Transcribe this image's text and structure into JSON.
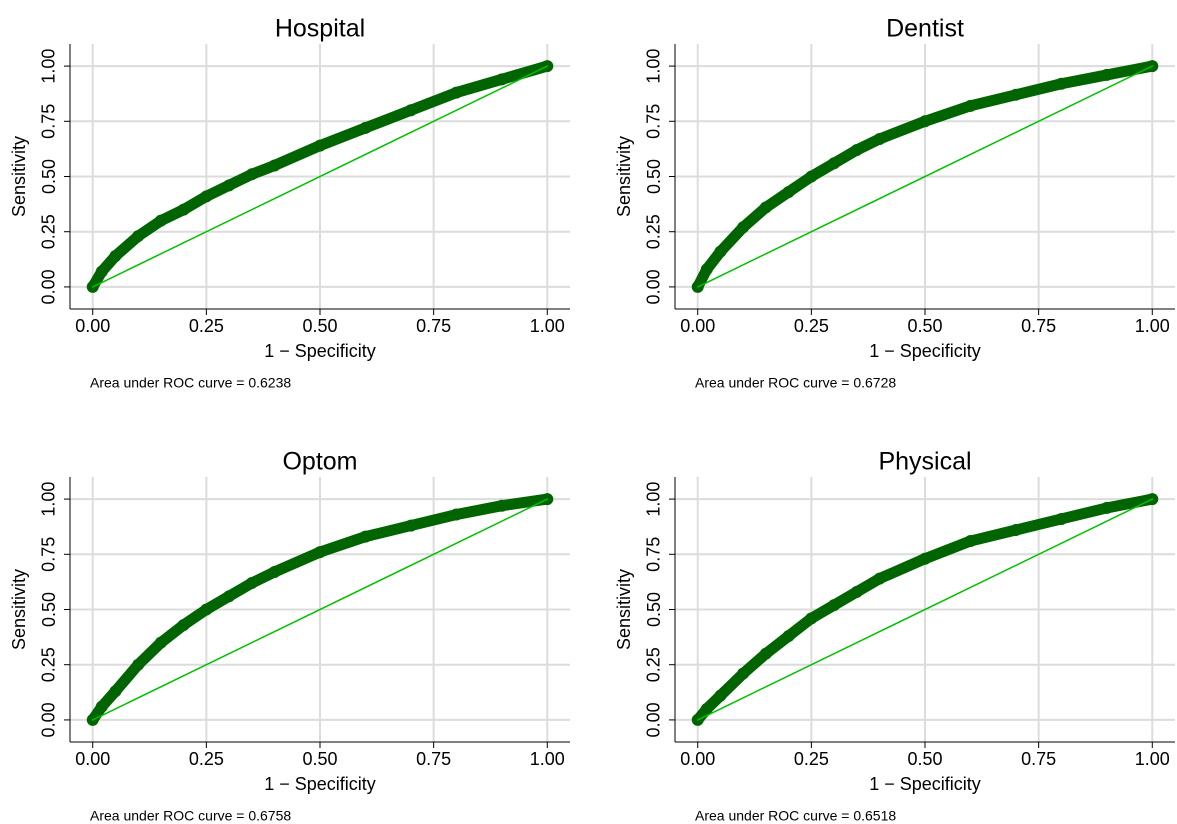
{
  "chart_data": [
    {
      "type": "line",
      "title": "Hospital",
      "xlabel": "1 − Specificity",
      "ylabel": "Sensitivity",
      "note": "Area under ROC curve = 0.6238",
      "xlim": [
        -0.05,
        1.05
      ],
      "ylim": [
        -0.1,
        1.1
      ],
      "xticks": [
        {
          "value": 0,
          "label": "0.00"
        },
        {
          "value": 0.25,
          "label": "0.25"
        },
        {
          "value": 0.5,
          "label": "0.50"
        },
        {
          "value": 0.75,
          "label": "0.75"
        },
        {
          "value": 1,
          "label": "1.00"
        }
      ],
      "yticks": [
        {
          "value": 0,
          "label": "0.00"
        },
        {
          "value": 0.25,
          "label": "0.25"
        },
        {
          "value": 0.5,
          "label": "0.50"
        },
        {
          "value": 0.75,
          "label": "0.75"
        },
        {
          "value": 1,
          "label": "1.00"
        }
      ],
      "grid": true,
      "series": [
        {
          "color": "#006400",
          "marker": true,
          "x": [
            0,
            0.02,
            0.05,
            0.1,
            0.15,
            0.2,
            0.25,
            0.3,
            0.35,
            0.4,
            0.5,
            0.6,
            0.7,
            0.8,
            0.9,
            1
          ],
          "values": [
            0,
            0.07,
            0.14,
            0.23,
            0.3,
            0.35,
            0.41,
            0.46,
            0.51,
            0.55,
            0.64,
            0.72,
            0.8,
            0.88,
            0.94,
            1
          ]
        },
        {
          "color": "#00c000",
          "marker": false,
          "x": [
            0,
            1
          ],
          "values": [
            0,
            1
          ]
        }
      ]
    },
    {
      "type": "line",
      "title": "Dentist",
      "xlabel": "1 − Specificity",
      "ylabel": "Sensitivity",
      "note": "Area under ROC curve = 0.6728",
      "xlim": [
        -0.05,
        1.05
      ],
      "ylim": [
        -0.1,
        1.1
      ],
      "xticks": [
        {
          "value": 0,
          "label": "0.00"
        },
        {
          "value": 0.25,
          "label": "0.25"
        },
        {
          "value": 0.5,
          "label": "0.50"
        },
        {
          "value": 0.75,
          "label": "0.75"
        },
        {
          "value": 1,
          "label": "1.00"
        }
      ],
      "yticks": [
        {
          "value": 0,
          "label": "0.00"
        },
        {
          "value": 0.25,
          "label": "0.25"
        },
        {
          "value": 0.5,
          "label": "0.50"
        },
        {
          "value": 0.75,
          "label": "0.75"
        },
        {
          "value": 1,
          "label": "1.00"
        }
      ],
      "grid": true,
      "series": [
        {
          "color": "#006400",
          "marker": true,
          "x": [
            0,
            0.02,
            0.05,
            0.1,
            0.15,
            0.2,
            0.25,
            0.3,
            0.35,
            0.4,
            0.5,
            0.6,
            0.7,
            0.8,
            0.9,
            1
          ],
          "values": [
            0,
            0.08,
            0.16,
            0.27,
            0.36,
            0.43,
            0.5,
            0.56,
            0.62,
            0.67,
            0.75,
            0.82,
            0.87,
            0.92,
            0.96,
            1
          ]
        },
        {
          "color": "#00c000",
          "marker": false,
          "x": [
            0,
            1
          ],
          "values": [
            0,
            1
          ]
        }
      ]
    },
    {
      "type": "line",
      "title": "Optom",
      "xlabel": "1 − Specificity",
      "ylabel": "Sensitivity",
      "note": "Area under ROC curve = 0.6758",
      "xlim": [
        -0.05,
        1.05
      ],
      "ylim": [
        -0.1,
        1.1
      ],
      "xticks": [
        {
          "value": 0,
          "label": "0.00"
        },
        {
          "value": 0.25,
          "label": "0.25"
        },
        {
          "value": 0.5,
          "label": "0.50"
        },
        {
          "value": 0.75,
          "label": "0.75"
        },
        {
          "value": 1,
          "label": "1.00"
        }
      ],
      "yticks": [
        {
          "value": 0,
          "label": "0.00"
        },
        {
          "value": 0.25,
          "label": "0.25"
        },
        {
          "value": 0.5,
          "label": "0.50"
        },
        {
          "value": 0.75,
          "label": "0.75"
        },
        {
          "value": 1,
          "label": "1.00"
        }
      ],
      "grid": true,
      "series": [
        {
          "color": "#006400",
          "marker": true,
          "x": [
            0,
            0.02,
            0.05,
            0.1,
            0.15,
            0.2,
            0.25,
            0.3,
            0.35,
            0.4,
            0.5,
            0.6,
            0.7,
            0.8,
            0.9,
            1
          ],
          "values": [
            0,
            0.06,
            0.13,
            0.25,
            0.35,
            0.43,
            0.5,
            0.56,
            0.62,
            0.67,
            0.76,
            0.83,
            0.88,
            0.93,
            0.97,
            1
          ]
        },
        {
          "color": "#00c000",
          "marker": false,
          "x": [
            0,
            1
          ],
          "values": [
            0,
            1
          ]
        }
      ]
    },
    {
      "type": "line",
      "title": "Physical",
      "xlabel": "1 − Specificity",
      "ylabel": "Sensitivity",
      "note": "Area under ROC curve = 0.6518",
      "xlim": [
        -0.05,
        1.05
      ],
      "ylim": [
        -0.1,
        1.1
      ],
      "xticks": [
        {
          "value": 0,
          "label": "0.00"
        },
        {
          "value": 0.25,
          "label": "0.25"
        },
        {
          "value": 0.5,
          "label": "0.50"
        },
        {
          "value": 0.75,
          "label": "0.75"
        },
        {
          "value": 1,
          "label": "1.00"
        }
      ],
      "yticks": [
        {
          "value": 0,
          "label": "0.00"
        },
        {
          "value": 0.25,
          "label": "0.25"
        },
        {
          "value": 0.5,
          "label": "0.50"
        },
        {
          "value": 0.75,
          "label": "0.75"
        },
        {
          "value": 1,
          "label": "1.00"
        }
      ],
      "grid": true,
      "series": [
        {
          "color": "#006400",
          "marker": true,
          "x": [
            0,
            0.02,
            0.05,
            0.1,
            0.15,
            0.2,
            0.25,
            0.3,
            0.35,
            0.4,
            0.5,
            0.6,
            0.7,
            0.8,
            0.9,
            1
          ],
          "values": [
            0,
            0.05,
            0.11,
            0.21,
            0.3,
            0.38,
            0.46,
            0.52,
            0.58,
            0.64,
            0.73,
            0.81,
            0.86,
            0.91,
            0.96,
            1
          ]
        },
        {
          "color": "#00c000",
          "marker": false,
          "x": [
            0,
            1
          ],
          "values": [
            0,
            1
          ]
        }
      ]
    }
  ]
}
